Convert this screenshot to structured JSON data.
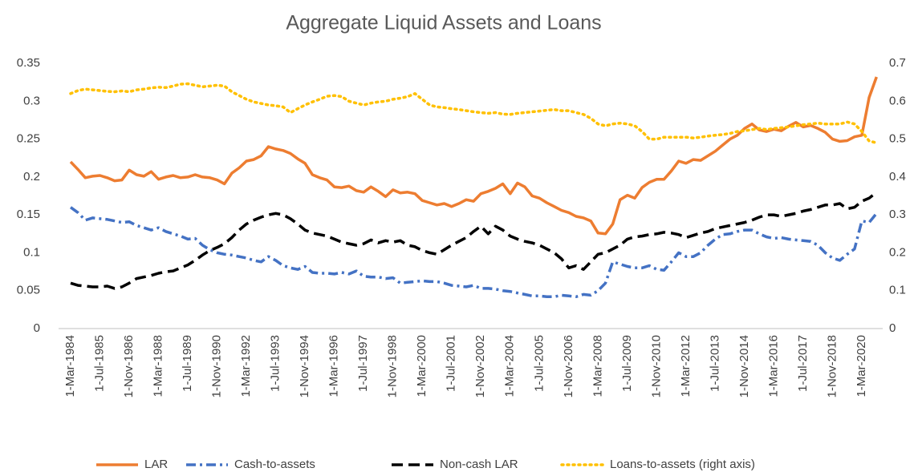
{
  "chart_data": {
    "type": "line",
    "title": "Aggregate Liquid Assets and Loans",
    "categories": [
      "1-Mar-1984",
      null,
      null,
      null,
      "1-Jul-1985",
      null,
      null,
      null,
      "1-Nov-1986",
      null,
      null,
      null,
      "1-Mar-1988",
      null,
      null,
      null,
      "1-Jul-1989",
      null,
      null,
      null,
      "1-Nov-1990",
      null,
      null,
      null,
      "1-Mar-1992",
      null,
      null,
      null,
      "1-Jul-1993",
      null,
      null,
      null,
      "1-Nov-1994",
      null,
      null,
      null,
      "1-Mar-1996",
      null,
      null,
      null,
      "1-Jul-1997",
      null,
      null,
      null,
      "1-Nov-1998",
      null,
      null,
      null,
      "1-Mar-2000",
      null,
      null,
      null,
      "1-Jul-2001",
      null,
      null,
      null,
      "1-Nov-2002",
      null,
      null,
      null,
      "1-Mar-2004",
      null,
      null,
      null,
      "1-Jul-2005",
      null,
      null,
      null,
      "1-Nov-2006",
      null,
      null,
      null,
      "1-Mar-2008",
      null,
      null,
      null,
      "1-Jul-2009",
      null,
      null,
      null,
      "1-Nov-2010",
      null,
      null,
      null,
      "1-Mar-2012",
      null,
      null,
      null,
      "1-Jul-2013",
      null,
      null,
      null,
      "1-Nov-2014",
      null,
      null,
      null,
      "1-Mar-2016",
      null,
      null,
      null,
      "1-Jul-2017",
      null,
      null,
      null,
      "1-Nov-2018",
      null,
      null,
      null,
      "1-Mar-2020",
      null,
      null
    ],
    "series": [
      {
        "name": "LAR",
        "color": "#ED7D31",
        "dash": "solid",
        "values": [
          0.22,
          0.21,
          0.199,
          0.201,
          0.202,
          0.199,
          0.195,
          0.196,
          0.209,
          0.203,
          0.201,
          0.207,
          0.197,
          0.2,
          0.202,
          0.199,
          0.2,
          0.203,
          0.2,
          0.199,
          0.196,
          0.191,
          0.205,
          0.212,
          0.221,
          0.223,
          0.228,
          0.24,
          0.237,
          0.235,
          0.231,
          0.224,
          0.218,
          0.203,
          0.199,
          0.196,
          0.187,
          0.186,
          0.188,
          0.182,
          0.18,
          0.187,
          0.181,
          0.174,
          0.183,
          0.179,
          0.18,
          0.178,
          0.169,
          0.166,
          0.163,
          0.165,
          0.161,
          0.165,
          0.17,
          0.168,
          0.178,
          0.181,
          0.185,
          0.191,
          0.178,
          0.192,
          0.187,
          0.175,
          0.172,
          0.166,
          0.161,
          0.156,
          0.153,
          0.148,
          0.146,
          0.142,
          0.126,
          0.125,
          0.138,
          0.17,
          0.176,
          0.172,
          0.186,
          0.193,
          0.197,
          0.197,
          0.208,
          0.221,
          0.218,
          0.223,
          0.222,
          0.228,
          0.234,
          0.242,
          0.25,
          0.255,
          0.264,
          0.27,
          0.262,
          0.26,
          0.263,
          0.261,
          0.267,
          0.272,
          0.266,
          0.268,
          0.264,
          0.259,
          0.25,
          0.247,
          0.248,
          0.253,
          0.255,
          0.305,
          0.332
        ]
      },
      {
        "name": "Cash-to-assets",
        "color": "#4472C4",
        "dash": "dash-dot",
        "values": [
          0.16,
          0.153,
          0.143,
          0.146,
          0.145,
          0.144,
          0.142,
          0.14,
          0.141,
          0.136,
          0.133,
          0.13,
          0.133,
          0.128,
          0.125,
          0.122,
          0.118,
          0.119,
          0.11,
          0.104,
          0.1,
          0.098,
          0.097,
          0.095,
          0.093,
          0.09,
          0.088,
          0.095,
          0.09,
          0.083,
          0.08,
          0.078,
          0.082,
          0.074,
          0.073,
          0.073,
          0.072,
          0.074,
          0.072,
          0.076,
          0.069,
          0.068,
          0.068,
          0.066,
          0.067,
          0.06,
          0.061,
          0.062,
          0.063,
          0.062,
          0.062,
          0.06,
          0.057,
          0.056,
          0.055,
          0.057,
          0.053,
          0.053,
          0.052,
          0.05,
          0.049,
          0.047,
          0.045,
          0.043,
          0.043,
          0.042,
          0.042,
          0.044,
          0.043,
          0.042,
          0.045,
          0.044,
          0.05,
          0.06,
          0.088,
          0.085,
          0.082,
          0.08,
          0.08,
          0.083,
          0.078,
          0.077,
          0.088,
          0.1,
          0.095,
          0.095,
          0.1,
          0.11,
          0.118,
          0.124,
          0.125,
          0.128,
          0.13,
          0.13,
          0.125,
          0.121,
          0.119,
          0.12,
          0.118,
          0.117,
          0.116,
          0.115,
          0.11,
          0.1,
          0.093,
          0.09,
          0.098,
          0.105,
          0.142,
          0.14,
          0.152
        ]
      },
      {
        "name": "Non-cash LAR",
        "color": "#000000",
        "dash": "dash",
        "values": [
          0.06,
          0.057,
          0.056,
          0.055,
          0.055,
          0.056,
          0.053,
          0.055,
          0.06,
          0.066,
          0.068,
          0.07,
          0.073,
          0.075,
          0.076,
          0.08,
          0.084,
          0.09,
          0.097,
          0.103,
          0.107,
          0.112,
          0.12,
          0.13,
          0.138,
          0.143,
          0.147,
          0.15,
          0.152,
          0.15,
          0.145,
          0.138,
          0.13,
          0.126,
          0.124,
          0.122,
          0.118,
          0.114,
          0.112,
          0.11,
          0.112,
          0.117,
          0.113,
          0.116,
          0.114,
          0.116,
          0.11,
          0.108,
          0.103,
          0.1,
          0.098,
          0.104,
          0.11,
          0.115,
          0.12,
          0.128,
          0.135,
          0.125,
          0.135,
          0.13,
          0.122,
          0.118,
          0.115,
          0.113,
          0.11,
          0.105,
          0.1,
          0.092,
          0.08,
          0.083,
          0.078,
          0.088,
          0.098,
          0.1,
          0.105,
          0.11,
          0.118,
          0.121,
          0.122,
          0.124,
          0.125,
          0.127,
          0.126,
          0.124,
          0.12,
          0.123,
          0.126,
          0.128,
          0.132,
          0.134,
          0.136,
          0.138,
          0.14,
          0.143,
          0.147,
          0.15,
          0.15,
          0.148,
          0.15,
          0.152,
          0.155,
          0.157,
          0.16,
          0.163,
          0.163,
          0.165,
          0.158,
          0.16,
          0.168,
          0.172,
          0.18
        ]
      },
      {
        "name": "Loans-to-assets (right axis)",
        "color": "#FFC000",
        "dash": "dot",
        "axis": "y2",
        "values": [
          0.62,
          0.628,
          0.632,
          0.63,
          0.628,
          0.626,
          0.625,
          0.627,
          0.625,
          0.63,
          0.632,
          0.635,
          0.637,
          0.636,
          0.64,
          0.645,
          0.646,
          0.642,
          0.638,
          0.64,
          0.642,
          0.64,
          0.625,
          0.615,
          0.605,
          0.598,
          0.594,
          0.59,
          0.588,
          0.585,
          0.57,
          0.58,
          0.59,
          0.598,
          0.605,
          0.613,
          0.615,
          0.612,
          0.6,
          0.595,
          0.59,
          0.595,
          0.598,
          0.6,
          0.605,
          0.608,
          0.612,
          0.62,
          0.605,
          0.59,
          0.585,
          0.583,
          0.58,
          0.578,
          0.575,
          0.572,
          0.57,
          0.568,
          0.57,
          0.566,
          0.565,
          0.568,
          0.57,
          0.572,
          0.574,
          0.576,
          0.578,
          0.575,
          0.575,
          0.57,
          0.565,
          0.555,
          0.54,
          0.535,
          0.54,
          0.542,
          0.54,
          0.535,
          0.52,
          0.5,
          0.5,
          0.505,
          0.505,
          0.505,
          0.505,
          0.503,
          0.505,
          0.508,
          0.51,
          0.512,
          0.515,
          0.52,
          0.522,
          0.525,
          0.528,
          0.525,
          0.528,
          0.53,
          0.532,
          0.535,
          0.538,
          0.54,
          0.542,
          0.54,
          0.54,
          0.54,
          0.545,
          0.54,
          0.52,
          0.495,
          0.49
        ]
      }
    ],
    "ylim": [
      0,
      0.35
    ],
    "yticks": [
      0,
      0.05,
      0.1,
      0.15,
      0.2,
      0.25,
      0.3,
      0.35
    ],
    "y2lim": [
      0,
      0.7
    ],
    "y2ticks": [
      0,
      0.1,
      0.2,
      0.3,
      0.4,
      0.5,
      0.6,
      0.7
    ],
    "grid": false,
    "legend": "bottom"
  }
}
